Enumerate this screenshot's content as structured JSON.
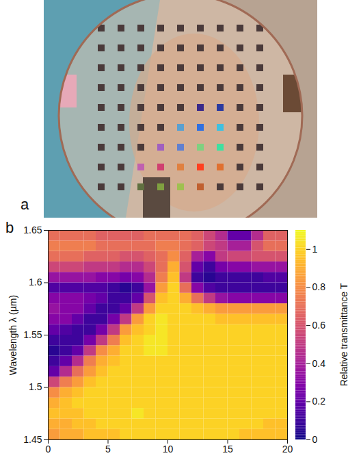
{
  "chart_data": [
    {
      "type": "image",
      "panel": "a",
      "colors": [
        "#4a3a3a",
        "#4a3a3a",
        "#4a3a3a",
        "#4a3a3a",
        "#4a3a3a",
        "#4a3a3a",
        "#4a3a3a",
        "#4a3a3a",
        "#4a3a3a",
        "#4a3a3a",
        "#4a3a3a",
        "#4a3a3a",
        "#4a3a3a",
        "#4a3a3a",
        "#4a3a3a",
        "#4a3a3a",
        "#4a3a3a",
        "#4a3a3a",
        "#4a3a3a",
        "#4a3a3a",
        "#4a3a3a",
        "#4a3a3a",
        "#4a3a3a",
        "#4a3a3a",
        "#4a3a3a",
        "#4a3a3a",
        "#4a3a3a",
        "#4a3a3a",
        "#4a3a3a",
        "#4a3a3a",
        "#4a3a3a",
        "#4a3a3a",
        "#4a3a3a",
        "#4a3a3a",
        "#4a3a3a",
        "#4a3a3a",
        "#4a3a3a",
        "#4a3a3a",
        "#4a3a3a",
        "#4a3a3a",
        "#4a3a3a",
        "#3a2a8a",
        "#2a3aa0",
        "#4a3a3a",
        "#4a3a3a",
        "#4a3a3a",
        "#4a3a3a",
        "#4a3a3a",
        "#4a3a3a",
        "#5aa0d0",
        "#3070e0",
        "#40c0e0",
        "#4a3a3a",
        "#4a3a3a",
        "#4a3a3a",
        "#4a3a3a",
        "#4a3a3a",
        "#a060c0",
        "#6080d0",
        "#80d080",
        "#40e0a0",
        "#4a3a3a",
        "#4a3a3a",
        "#4a3a3a",
        "#4a3a3a",
        "#c060b0",
        "#d04070",
        "#e08040",
        "#ff4020",
        "#e07030",
        "#4a3a3a",
        "#4a3a3a",
        "#4a3a3a",
        "#4a3a3a",
        "#607040",
        "#80a040",
        "#a0c050",
        "#c06030",
        "#4a3a3a",
        "#4a3a3a",
        "#4a3a3a"
      ]
    },
    {
      "type": "heatmap",
      "panel": "b",
      "ylabel": "Wavelength λ (µm)",
      "xlim": [
        0,
        20
      ],
      "xticks": [
        0,
        5,
        10,
        15,
        20
      ],
      "ylim": [
        1.45,
        1.65
      ],
      "yticks": [
        1.45,
        1.5,
        1.55,
        1.6,
        1.65
      ],
      "color": "plasma",
      "x_bins": [
        0,
        1,
        2,
        3,
        4,
        5,
        6,
        7,
        8,
        9,
        10,
        11,
        12,
        13,
        14,
        15,
        16,
        17,
        18,
        19,
        20
      ],
      "y_bins": [
        1.45,
        1.46,
        1.47,
        1.48,
        1.49,
        1.5,
        1.51,
        1.52,
        1.53,
        1.54,
        1.55,
        1.56,
        1.57,
        1.58,
        1.59,
        1.6,
        1.61,
        1.62,
        1.63,
        1.64,
        1.65
      ],
      "cells": [
        [
          0.85,
          0.9,
          0.9,
          0.95,
          0.95,
          0.95,
          1,
          1,
          1,
          1,
          1,
          1,
          1,
          1,
          1,
          1,
          0.95,
          0.95,
          0.95,
          0.95
        ],
        [
          0.9,
          0.9,
          0.95,
          0.95,
          1,
          1,
          1,
          1,
          1,
          1,
          1,
          1,
          1,
          1,
          1,
          1,
          1,
          1,
          0.95,
          0.95
        ],
        [
          0.95,
          0.95,
          0.95,
          1,
          1,
          1,
          1,
          1.05,
          1,
          1,
          1,
          1,
          1,
          1,
          1,
          1,
          1,
          1,
          1,
          1
        ],
        [
          0.9,
          0.95,
          1,
          1,
          1,
          1,
          1,
          1,
          1,
          1,
          1,
          1,
          1,
          1,
          1,
          1,
          1,
          1,
          1,
          1
        ],
        [
          0.8,
          0.9,
          0.95,
          1,
          1,
          1,
          1,
          1,
          1,
          1,
          1,
          1,
          1,
          1,
          1,
          1,
          1,
          1,
          1,
          1
        ],
        [
          0.55,
          0.75,
          0.85,
          0.95,
          1,
          1,
          1,
          1,
          1,
          1,
          1,
          1,
          1,
          1,
          1,
          1,
          1,
          1,
          1,
          1
        ],
        [
          0.2,
          0.45,
          0.7,
          0.85,
          0.95,
          1,
          1,
          1,
          1,
          1,
          1,
          1,
          1,
          1,
          1,
          1,
          1,
          1,
          1,
          1
        ],
        [
          0.1,
          0.2,
          0.45,
          0.75,
          0.9,
          0.95,
          1,
          1,
          1,
          1,
          1,
          1,
          1,
          1,
          1,
          1,
          1,
          1,
          1,
          1
        ],
        [
          0.05,
          0.1,
          0.2,
          0.5,
          0.8,
          0.9,
          1,
          1,
          1.05,
          1.05,
          1,
          1,
          1,
          1,
          1,
          1,
          1,
          1,
          1,
          1
        ],
        [
          0.1,
          0.1,
          0.1,
          0.25,
          0.5,
          0.75,
          0.95,
          1,
          1.05,
          1.05,
          1,
          1,
          1,
          1,
          1,
          1,
          1,
          1,
          1,
          1
        ],
        [
          0.2,
          0.15,
          0.1,
          0.1,
          0.25,
          0.5,
          0.85,
          0.95,
          1,
          1.05,
          1,
          1,
          1,
          1,
          1,
          1,
          1,
          1,
          1,
          1
        ],
        [
          0.3,
          0.3,
          0.2,
          0.1,
          0.1,
          0.25,
          0.5,
          0.85,
          1,
          1.05,
          1,
          1,
          1,
          1,
          0.95,
          0.95,
          0.95,
          0.95,
          0.95,
          0.95
        ],
        [
          0.35,
          0.3,
          0.3,
          0.2,
          0.1,
          0.1,
          0.2,
          0.5,
          0.85,
          1,
          1,
          1,
          0.95,
          0.9,
          0.85,
          0.85,
          0.85,
          0.85,
          0.85,
          0.85
        ],
        [
          0.3,
          0.3,
          0.3,
          0.25,
          0.2,
          0.1,
          0.1,
          0.2,
          0.6,
          0.95,
          1,
          0.9,
          0.7,
          0.5,
          0.35,
          0.3,
          0.3,
          0.3,
          0.3,
          0.3
        ],
        [
          0.15,
          0.15,
          0.15,
          0.15,
          0.15,
          0.1,
          0.05,
          0.1,
          0.35,
          0.85,
          1,
          0.7,
          0.3,
          0.15,
          0.1,
          0.1,
          0.1,
          0.1,
          0.1,
          0.1
        ],
        [
          0.35,
          0.35,
          0.35,
          0.35,
          0.3,
          0.3,
          0.25,
          0.3,
          0.45,
          0.75,
          0.95,
          0.5,
          0.1,
          0.05,
          0.1,
          0.1,
          0.1,
          0.1,
          0.15,
          0.15
        ],
        [
          0.55,
          0.55,
          0.55,
          0.5,
          0.5,
          0.5,
          0.45,
          0.45,
          0.55,
          0.7,
          0.9,
          0.6,
          0.2,
          0.1,
          0.25,
          0.3,
          0.3,
          0.35,
          0.35,
          0.35
        ],
        [
          0.7,
          0.7,
          0.7,
          0.65,
          0.65,
          0.65,
          0.6,
          0.6,
          0.65,
          0.7,
          0.8,
          0.65,
          0.4,
          0.3,
          0.5,
          0.55,
          0.55,
          0.6,
          0.6,
          0.6
        ],
        [
          0.75,
          0.75,
          0.75,
          0.75,
          0.7,
          0.7,
          0.7,
          0.7,
          0.7,
          0.75,
          0.75,
          0.7,
          0.65,
          0.55,
          0.5,
          0.4,
          0.4,
          0.6,
          0.7,
          0.7
        ],
        [
          0.7,
          0.7,
          0.7,
          0.7,
          0.65,
          0.65,
          0.65,
          0.65,
          0.7,
          0.7,
          0.7,
          0.7,
          0.65,
          0.55,
          0.45,
          0.2,
          0.2,
          0.45,
          0.65,
          0.65
        ]
      ],
      "colorbar": {
        "label": "Relative transmittance T",
        "range": [
          0,
          1.1
        ],
        "ticks": [
          0,
          0.2,
          0.4,
          0.6,
          0.8,
          1
        ]
      }
    }
  ]
}
